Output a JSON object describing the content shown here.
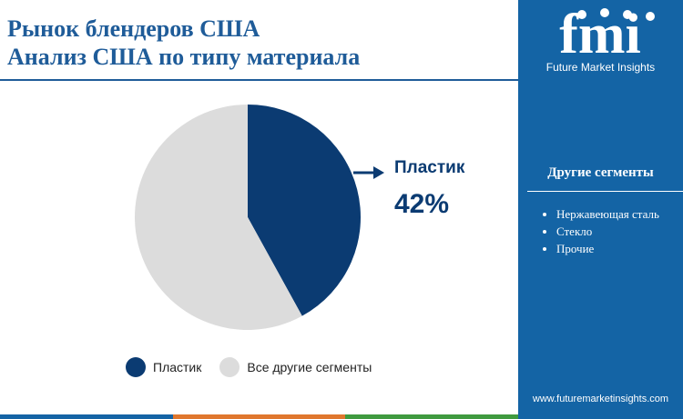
{
  "header": {
    "title_line1": "Рынок блендеров США",
    "title_line2": "Анализ США по типу материала"
  },
  "brand": {
    "logo_text": "fmi",
    "name": "Future Market Insights",
    "website": "www.futuremarketinsights.com"
  },
  "sidebar": {
    "segments_title": "Другие сегменты",
    "segments": [
      "Нержавеющая сталь",
      "Стекло",
      "Прочие"
    ]
  },
  "callout": {
    "label": "Пластик",
    "value": "42%"
  },
  "colors": {
    "primary": "#0b3b72",
    "other": "#dcdcdc",
    "sidebar": "#1464a5",
    "title": "#1f5c99",
    "bottom_bar": [
      "#1464a5",
      "#e0772e",
      "#3f9a3f"
    ]
  },
  "chart_data": {
    "type": "pie",
    "slices": [
      {
        "label": "Пластик",
        "value": 42
      },
      {
        "label": "Все другие сегменты",
        "value": 58
      }
    ],
    "legend": [
      "Пластик",
      "Все другие сегменты"
    ],
    "legend_position": "bottom"
  }
}
